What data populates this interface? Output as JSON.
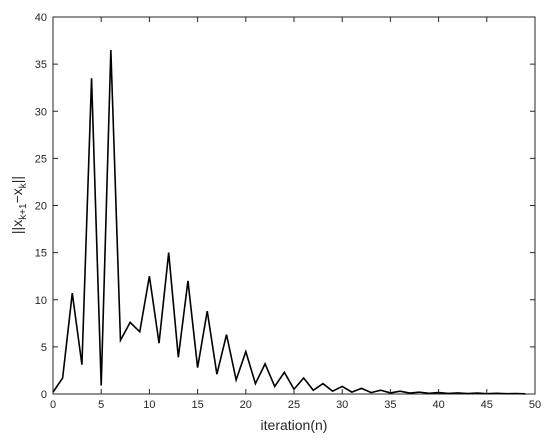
{
  "chart_data": {
    "type": "line",
    "title": "",
    "xlabel": "iteration(n)",
    "ylabel_parts": {
      "open": "||x",
      "sub1": "k+1",
      "mid": "−x",
      "sub2": "k",
      "close": "||"
    },
    "xlim": [
      0,
      50
    ],
    "ylim": [
      0,
      40
    ],
    "xticks": [
      0,
      5,
      10,
      15,
      20,
      25,
      30,
      35,
      40,
      45,
      50
    ],
    "yticks": [
      0,
      5,
      10,
      15,
      20,
      25,
      30,
      35,
      40
    ],
    "grid": false,
    "line_color": "#000000",
    "series": [
      {
        "x": [
          0,
          1,
          2,
          3,
          4,
          5,
          6,
          7,
          8,
          9,
          10,
          11,
          12,
          13,
          14,
          15,
          16,
          17,
          18,
          19,
          20,
          21,
          22,
          23,
          24,
          25,
          26,
          27,
          28,
          29,
          30,
          31,
          32,
          33,
          34,
          35,
          36,
          37,
          38,
          39,
          40,
          41,
          42,
          43,
          44,
          45,
          46,
          47,
          48,
          49
        ],
        "values": [
          0.2,
          1.7,
          10.7,
          3.1,
          33.5,
          0.9,
          36.5,
          5.7,
          7.6,
          6.6,
          12.5,
          5.4,
          15.0,
          3.9,
          12.0,
          2.8,
          8.8,
          2.1,
          6.3,
          1.5,
          4.5,
          1.1,
          3.2,
          0.8,
          2.3,
          0.5,
          1.7,
          0.4,
          1.1,
          0.3,
          0.8,
          0.2,
          0.6,
          0.15,
          0.4,
          0.12,
          0.3,
          0.1,
          0.2,
          0.08,
          0.15,
          0.06,
          0.12,
          0.05,
          0.1,
          0.04,
          0.08,
          0.03,
          0.05,
          0.02
        ]
      }
    ]
  }
}
